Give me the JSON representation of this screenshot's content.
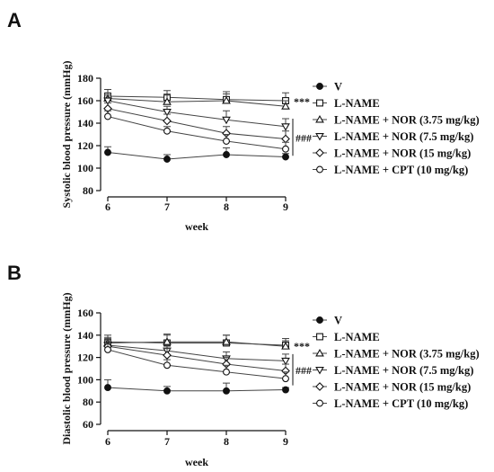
{
  "figure": {
    "panels": [
      {
        "letter": "A",
        "ylabel": "Systolic blood pressure (mmHg)",
        "xlabel": "week",
        "stars": "***",
        "hashes": "###",
        "chart_ref": 0
      },
      {
        "letter": "B",
        "ylabel": "Diastolic blood pressure (mmHg)",
        "xlabel": "week",
        "stars": "***",
        "hashes": "###",
        "chart_ref": 1
      }
    ]
  },
  "chart_data": [
    {
      "type": "line",
      "title": "",
      "xlabel": "week",
      "ylabel": "Systolic blood pressure (mmHg)",
      "x": [
        6,
        7,
        8,
        9
      ],
      "xlim": [
        6,
        9
      ],
      "ylim": [
        80,
        180
      ],
      "yticks": [
        80,
        100,
        120,
        140,
        160,
        180
      ],
      "grid": false,
      "legend_position": "right",
      "series": [
        {
          "name": "V",
          "marker": "circle-filled",
          "values": [
            114,
            108,
            112,
            110
          ],
          "err": [
            5,
            4,
            6,
            3
          ]
        },
        {
          "name": "L-NAME",
          "marker": "square-open",
          "values": [
            164,
            163,
            161,
            160
          ],
          "err": [
            6,
            6,
            7,
            7
          ]
        },
        {
          "name": "L-NAME + NOR (3.75 mg/kg)",
          "marker": "triangle-up-open",
          "values": [
            162,
            159,
            160,
            155
          ],
          "err": [
            5,
            6,
            6,
            5
          ]
        },
        {
          "name": "L-NAME + NOR (7.5 mg/kg)",
          "marker": "triangle-down-open",
          "values": [
            160,
            150,
            143,
            137
          ],
          "err": [
            5,
            5,
            8,
            7
          ]
        },
        {
          "name": "L-NAME + NOR (15 mg/kg)",
          "marker": "diamond-open",
          "values": [
            153,
            142,
            131,
            126
          ],
          "err": [
            5,
            6,
            6,
            7
          ]
        },
        {
          "name": "L-NAME + CPT (10 mg/kg)",
          "marker": "circle-open",
          "values": [
            146,
            133,
            124,
            117
          ],
          "err": [
            5,
            4,
            6,
            6
          ]
        }
      ]
    },
    {
      "type": "line",
      "title": "",
      "xlabel": "week",
      "ylabel": "Diastolic blood pressure (mmHg)",
      "x": [
        6,
        7,
        8,
        9
      ],
      "xlim": [
        6,
        9
      ],
      "ylim": [
        60,
        160
      ],
      "yticks": [
        60,
        80,
        100,
        120,
        140,
        160
      ],
      "grid": false,
      "legend_position": "right",
      "series": [
        {
          "name": "V",
          "marker": "circle-filled",
          "values": [
            93,
            90,
            90,
            91
          ],
          "err": [
            7,
            4,
            7,
            2
          ]
        },
        {
          "name": "L-NAME",
          "marker": "square-open",
          "values": [
            134,
            133,
            133,
            131
          ],
          "err": [
            6,
            8,
            7,
            6
          ]
        },
        {
          "name": "L-NAME + NOR (3.75 mg/kg)",
          "marker": "triangle-up-open",
          "values": [
            133,
            134,
            134,
            130
          ],
          "err": [
            5,
            6,
            6,
            5
          ]
        },
        {
          "name": "L-NAME + NOR (7.5 mg/kg)",
          "marker": "triangle-down-open",
          "values": [
            131,
            126,
            119,
            117
          ],
          "err": [
            5,
            5,
            6,
            6
          ]
        },
        {
          "name": "L-NAME + NOR (15 mg/kg)",
          "marker": "diamond-open",
          "values": [
            130,
            122,
            114,
            108
          ],
          "err": [
            5,
            6,
            6,
            6
          ]
        },
        {
          "name": "L-NAME + CPT (10 mg/kg)",
          "marker": "circle-open",
          "values": [
            127,
            113,
            107,
            101
          ],
          "err": [
            5,
            5,
            6,
            6
          ]
        }
      ]
    }
  ]
}
